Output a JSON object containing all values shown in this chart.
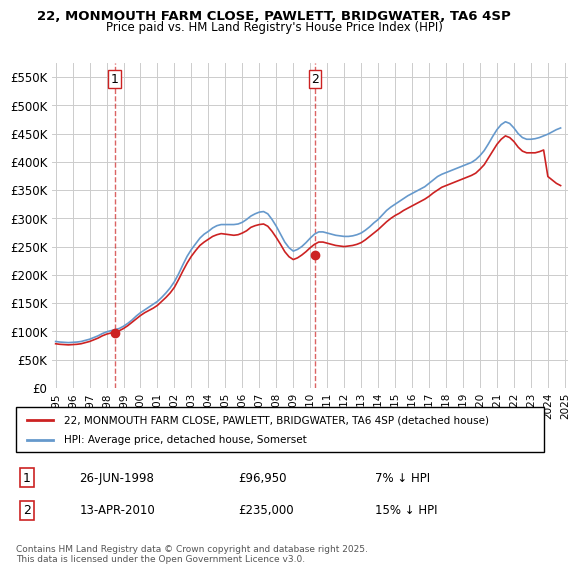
{
  "title1": "22, MONMOUTH FARM CLOSE, PAWLETT, BRIDGWATER, TA6 4SP",
  "title2": "Price paid vs. HM Land Registry's House Price Index (HPI)",
  "xlabel": "",
  "ylabel": "",
  "bg_color": "#ffffff",
  "grid_color": "#cccccc",
  "hpi_color": "#6699cc",
  "price_color": "#cc2222",
  "dashed_color": "#cc2222",
  "legend_label1": "22, MONMOUTH FARM CLOSE, PAWLETT, BRIDGWATER, TA6 4SP (detached house)",
  "legend_label2": "HPI: Average price, detached house, Somerset",
  "annotation1_label": "1",
  "annotation1_date": "26-JUN-1998",
  "annotation1_price": "£96,950",
  "annotation1_pct": "7% ↓ HPI",
  "annotation2_label": "2",
  "annotation2_date": "13-APR-2010",
  "annotation2_price": "£235,000",
  "annotation2_pct": "15% ↓ HPI",
  "footer": "Contains HM Land Registry data © Crown copyright and database right 2025.\nThis data is licensed under the Open Government Licence v3.0.",
  "ylim": [
    0,
    575000
  ],
  "yticks": [
    0,
    50000,
    100000,
    150000,
    200000,
    250000,
    300000,
    350000,
    400000,
    450000,
    500000,
    550000
  ],
  "ytick_labels": [
    "£0",
    "£50K",
    "£100K",
    "£150K",
    "£200K",
    "£250K",
    "£300K",
    "£350K",
    "£400K",
    "£450K",
    "£500K",
    "£550K"
  ],
  "sale1_x": 1998.49,
  "sale1_y": 96950,
  "sale2_x": 2010.28,
  "sale2_y": 235000,
  "hpi_years": [
    1995.0,
    1995.25,
    1995.5,
    1995.75,
    1996.0,
    1996.25,
    1996.5,
    1996.75,
    1997.0,
    1997.25,
    1997.5,
    1997.75,
    1998.0,
    1998.25,
    1998.5,
    1998.75,
    1999.0,
    1999.25,
    1999.5,
    1999.75,
    2000.0,
    2000.25,
    2000.5,
    2000.75,
    2001.0,
    2001.25,
    2001.5,
    2001.75,
    2002.0,
    2002.25,
    2002.5,
    2002.75,
    2003.0,
    2003.25,
    2003.5,
    2003.75,
    2004.0,
    2004.25,
    2004.5,
    2004.75,
    2005.0,
    2005.25,
    2005.5,
    2005.75,
    2006.0,
    2006.25,
    2006.5,
    2006.75,
    2007.0,
    2007.25,
    2007.5,
    2007.75,
    2008.0,
    2008.25,
    2008.5,
    2008.75,
    2009.0,
    2009.25,
    2009.5,
    2009.75,
    2010.0,
    2010.25,
    2010.5,
    2010.75,
    2011.0,
    2011.25,
    2011.5,
    2011.75,
    2012.0,
    2012.25,
    2012.5,
    2012.75,
    2013.0,
    2013.25,
    2013.5,
    2013.75,
    2014.0,
    2014.25,
    2014.5,
    2014.75,
    2015.0,
    2015.25,
    2015.5,
    2015.75,
    2016.0,
    2016.25,
    2016.5,
    2016.75,
    2017.0,
    2017.25,
    2017.5,
    2017.75,
    2018.0,
    2018.25,
    2018.5,
    2018.75,
    2019.0,
    2019.25,
    2019.5,
    2019.75,
    2020.0,
    2020.25,
    2020.5,
    2020.75,
    2021.0,
    2021.25,
    2021.5,
    2021.75,
    2022.0,
    2022.25,
    2022.5,
    2022.75,
    2023.0,
    2023.25,
    2023.5,
    2023.75,
    2024.0,
    2024.25,
    2024.5,
    2024.75
  ],
  "hpi_values": [
    82000,
    81000,
    80500,
    80000,
    80500,
    81000,
    82000,
    84000,
    86000,
    89000,
    92000,
    96000,
    99000,
    101000,
    103000,
    105000,
    109000,
    114000,
    120000,
    127000,
    133000,
    138000,
    143000,
    148000,
    153000,
    160000,
    168000,
    177000,
    188000,
    202000,
    218000,
    233000,
    245000,
    255000,
    265000,
    272000,
    277000,
    283000,
    287000,
    289000,
    289000,
    289000,
    289000,
    290000,
    293000,
    298000,
    304000,
    308000,
    311000,
    312000,
    308000,
    298000,
    286000,
    272000,
    258000,
    248000,
    242000,
    245000,
    250000,
    257000,
    265000,
    272000,
    276000,
    276000,
    274000,
    272000,
    270000,
    269000,
    268000,
    268000,
    269000,
    271000,
    274000,
    279000,
    285000,
    292000,
    298000,
    306000,
    314000,
    320000,
    325000,
    330000,
    335000,
    340000,
    344000,
    348000,
    352000,
    356000,
    362000,
    368000,
    374000,
    378000,
    381000,
    384000,
    387000,
    390000,
    393000,
    396000,
    399000,
    404000,
    411000,
    420000,
    432000,
    445000,
    457000,
    466000,
    471000,
    468000,
    460000,
    450000,
    443000,
    440000,
    440000,
    441000,
    443000,
    446000,
    449000,
    453000,
    457000,
    460000
  ],
  "price_years": [
    1995.0,
    1995.25,
    1995.5,
    1995.75,
    1996.0,
    1996.25,
    1996.5,
    1996.75,
    1997.0,
    1997.25,
    1997.5,
    1997.75,
    1998.0,
    1998.25,
    1998.5,
    1998.75,
    1999.0,
    1999.25,
    1999.5,
    1999.75,
    2000.0,
    2000.25,
    2000.5,
    2000.75,
    2001.0,
    2001.25,
    2001.5,
    2001.75,
    2002.0,
    2002.25,
    2002.5,
    2002.75,
    2003.0,
    2003.25,
    2003.5,
    2003.75,
    2004.0,
    2004.25,
    2004.5,
    2004.75,
    2005.0,
    2005.25,
    2005.5,
    2005.75,
    2006.0,
    2006.25,
    2006.5,
    2006.75,
    2007.0,
    2007.25,
    2007.5,
    2007.75,
    2008.0,
    2008.25,
    2008.5,
    2008.75,
    2009.0,
    2009.25,
    2009.5,
    2009.75,
    2010.0,
    2010.25,
    2010.5,
    2010.75,
    2011.0,
    2011.25,
    2011.5,
    2011.75,
    2012.0,
    2012.25,
    2012.5,
    2012.75,
    2013.0,
    2013.25,
    2013.5,
    2013.75,
    2014.0,
    2014.25,
    2014.5,
    2014.75,
    2015.0,
    2015.25,
    2015.5,
    2015.75,
    2016.0,
    2016.25,
    2016.5,
    2016.75,
    2017.0,
    2017.25,
    2017.5,
    2017.75,
    2018.0,
    2018.25,
    2018.5,
    2018.75,
    2019.0,
    2019.25,
    2019.5,
    2019.75,
    2020.0,
    2020.25,
    2020.5,
    2020.75,
    2021.0,
    2021.25,
    2021.5,
    2021.75,
    2022.0,
    2022.25,
    2022.5,
    2022.75,
    2023.0,
    2023.25,
    2023.5,
    2023.75,
    2024.0,
    2024.25,
    2024.5,
    2024.75
  ],
  "price_values": [
    78000,
    77000,
    76500,
    76000,
    76500,
    77000,
    78000,
    80000,
    82000,
    85000,
    88000,
    92000,
    95000,
    97000,
    99000,
    101000,
    105000,
    110000,
    116000,
    122000,
    128000,
    133000,
    137000,
    141000,
    146000,
    153000,
    160000,
    168000,
    178000,
    192000,
    207000,
    221000,
    233000,
    243000,
    252000,
    258000,
    263000,
    268000,
    271000,
    273000,
    272000,
    271000,
    270000,
    271000,
    274000,
    278000,
    284000,
    287000,
    289000,
    290000,
    286000,
    277000,
    266000,
    254000,
    241000,
    232000,
    227000,
    230000,
    235000,
    241000,
    248000,
    254000,
    258000,
    258000,
    256000,
    254000,
    252000,
    251000,
    250000,
    251000,
    252000,
    254000,
    257000,
    262000,
    268000,
    274000,
    280000,
    287000,
    294000,
    300000,
    305000,
    309000,
    314000,
    318000,
    322000,
    326000,
    330000,
    334000,
    339000,
    345000,
    350000,
    355000,
    358000,
    361000,
    364000,
    367000,
    370000,
    373000,
    376000,
    380000,
    387000,
    395000,
    407000,
    419000,
    431000,
    440000,
    446000,
    443000,
    436000,
    426000,
    419000,
    416000,
    416000,
    416000,
    418000,
    421000,
    374000,
    368000,
    362000,
    358000
  ],
  "xtick_years": [
    1995,
    1996,
    1997,
    1998,
    1999,
    2000,
    2001,
    2002,
    2003,
    2004,
    2005,
    2006,
    2007,
    2008,
    2009,
    2010,
    2011,
    2012,
    2013,
    2014,
    2015,
    2016,
    2017,
    2018,
    2019,
    2020,
    2021,
    2022,
    2023,
    2024,
    2025
  ]
}
